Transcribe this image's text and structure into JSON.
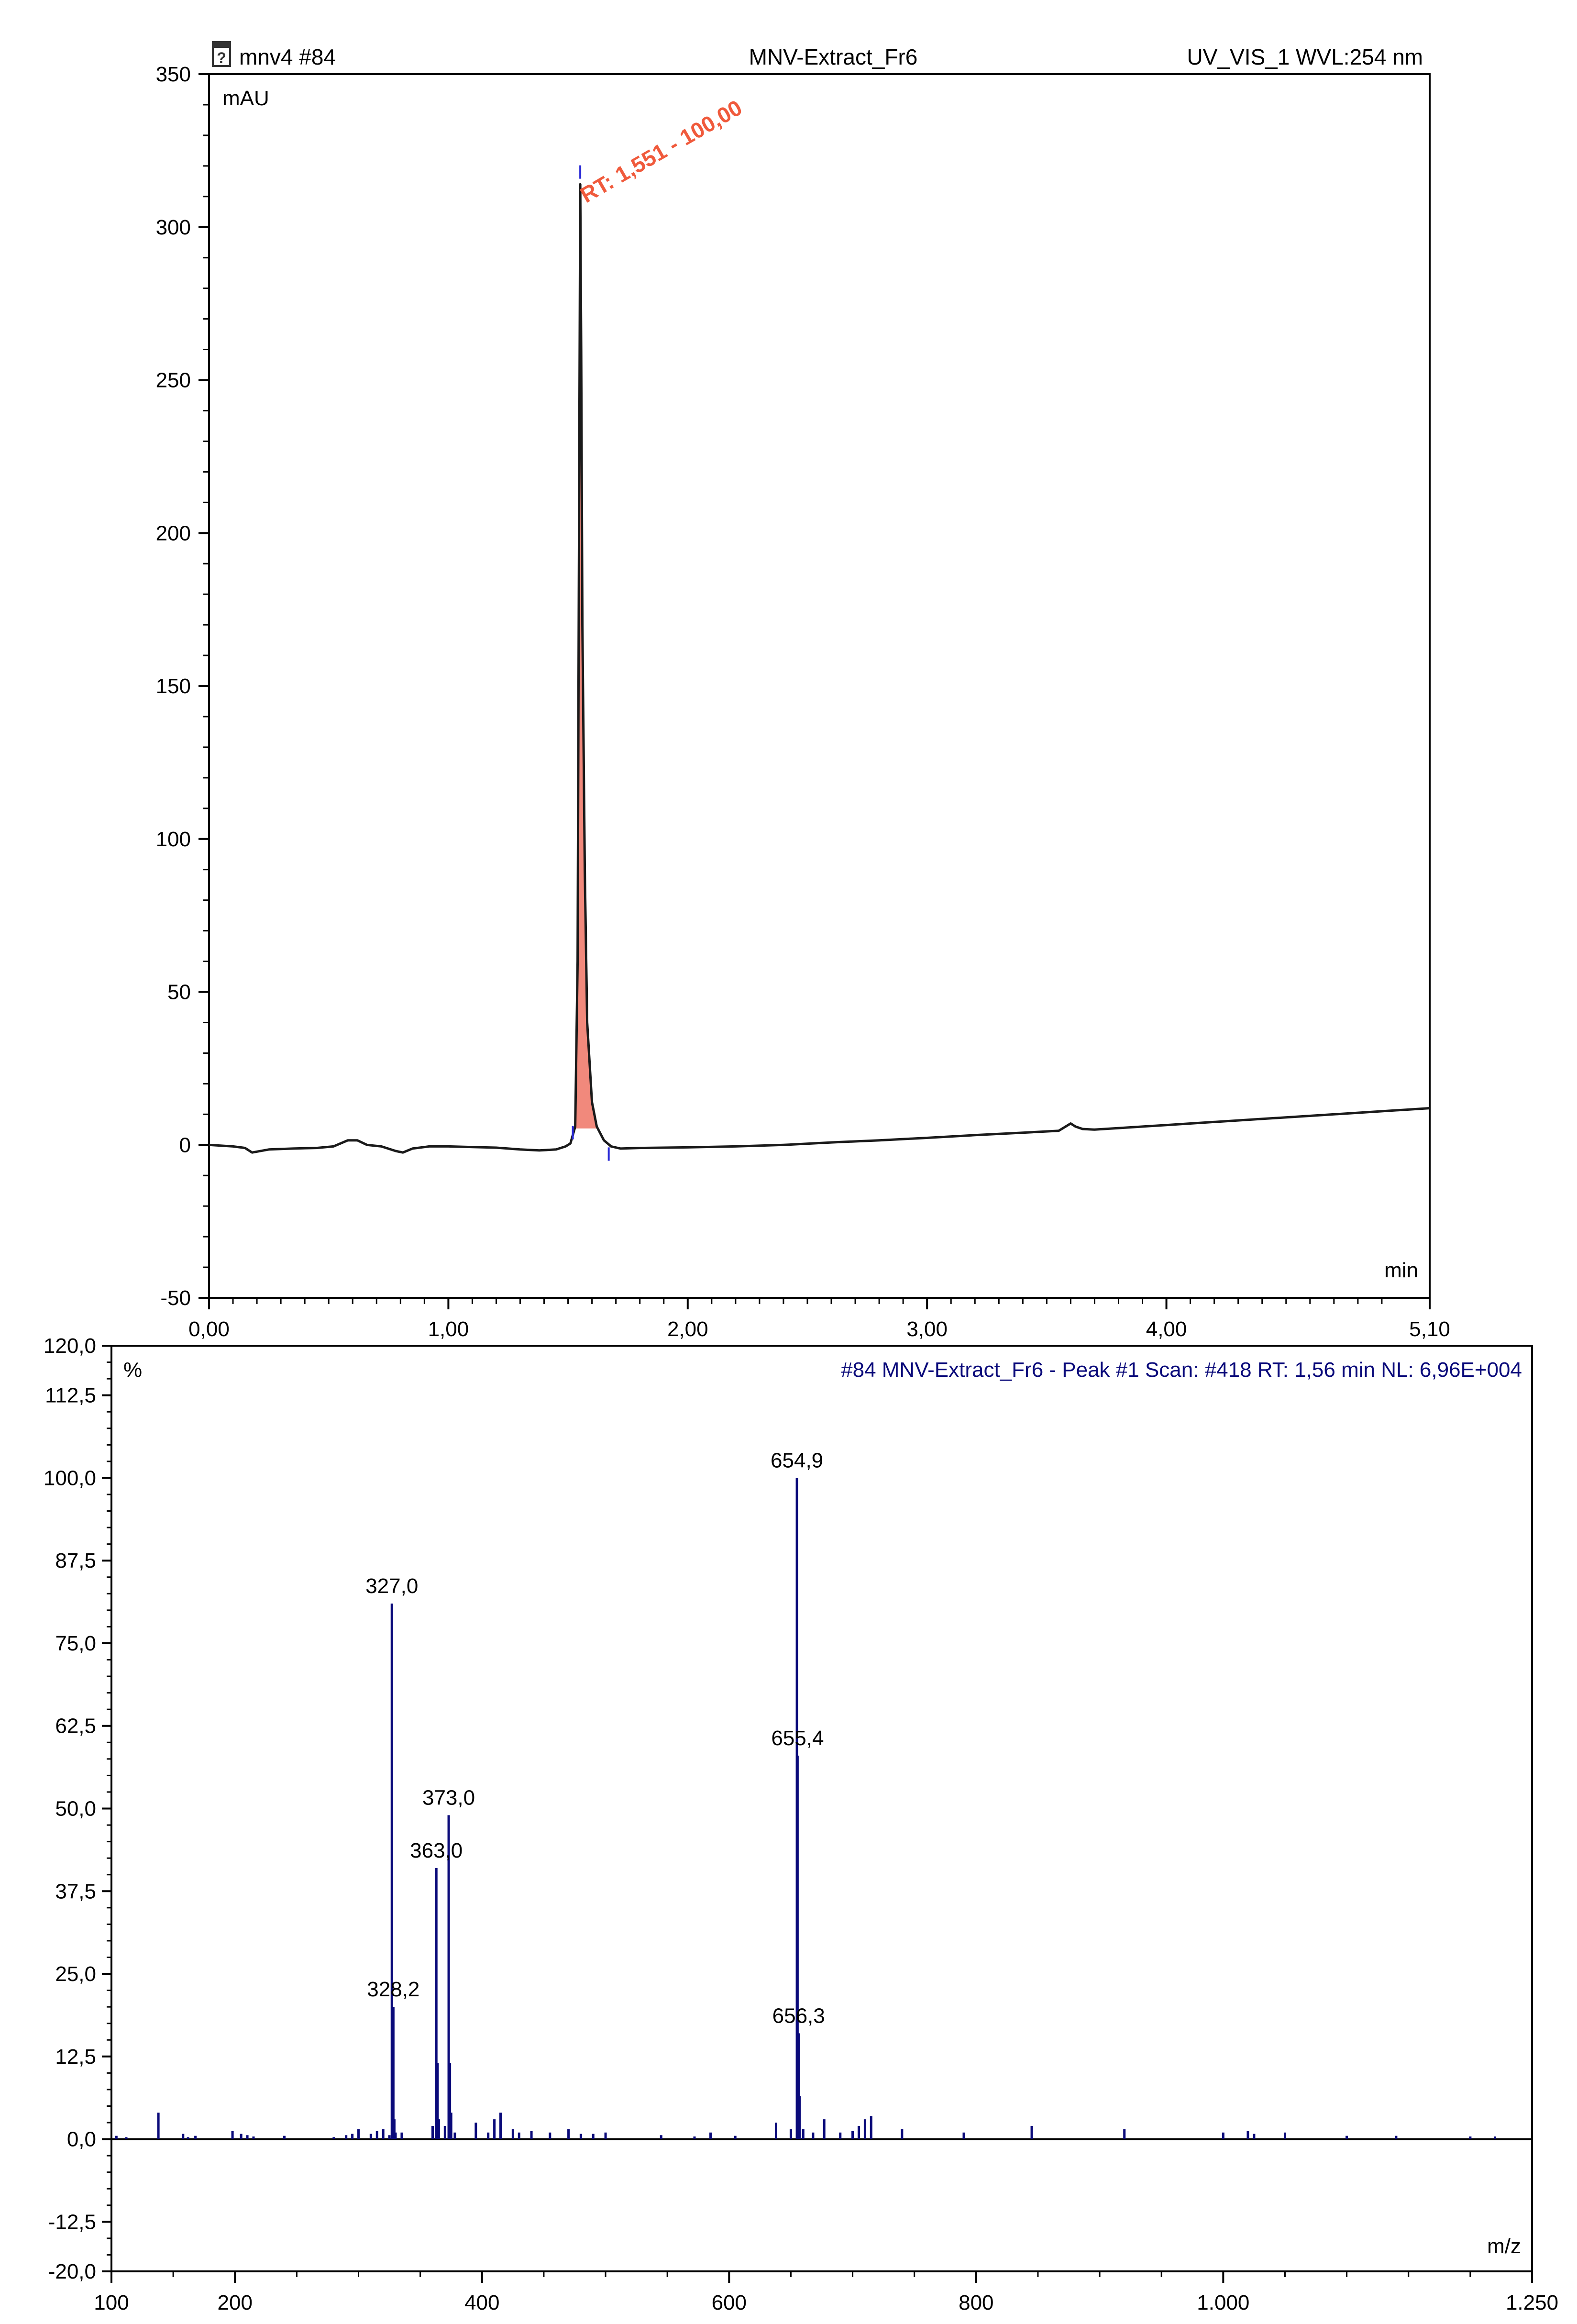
{
  "chart_data": [
    {
      "type": "line",
      "header": {
        "left": "mnv4 #84",
        "center": "MNV-Extract_Fr6",
        "right": "UV_VIS_1 WVL:254 nm"
      },
      "ylabel": "mAU",
      "xlabel": "min",
      "xlim": [
        0,
        5.1
      ],
      "ylim": [
        -50,
        350
      ],
      "xticks": [
        0,
        1,
        2,
        3,
        4,
        5.1
      ],
      "xtick_labels": [
        "0,00",
        "1,00",
        "2,00",
        "3,00",
        "4,00",
        "5,10"
      ],
      "yticks": [
        -50,
        0,
        50,
        100,
        150,
        200,
        250,
        300,
        350
      ],
      "ytick_labels": [
        "-50",
        "0",
        "50",
        "100",
        "150",
        "200",
        "250",
        "300",
        "350"
      ],
      "series": [
        {
          "x": [
            0.0,
            0.1,
            0.15,
            0.18,
            0.25,
            0.35,
            0.45,
            0.52,
            0.58,
            0.62,
            0.66,
            0.72,
            0.78,
            0.81,
            0.85,
            0.92,
            1.0,
            1.1,
            1.2,
            1.3,
            1.38,
            1.45,
            1.49,
            1.51,
            1.53,
            1.54,
            1.545,
            1.551,
            1.555,
            1.56,
            1.57,
            1.58,
            1.6,
            1.62,
            1.65,
            1.68,
            1.72,
            1.8,
            1.9,
            2.0,
            2.2,
            2.4,
            2.6,
            2.8,
            3.0,
            3.2,
            3.4,
            3.55,
            3.6,
            3.62,
            3.65,
            3.7,
            3.8,
            4.0,
            4.2,
            4.4,
            4.6,
            4.8,
            5.0,
            5.1
          ],
          "y": [
            0,
            -0.5,
            -1,
            -2.5,
            -1.5,
            -1.2,
            -1,
            -0.5,
            1.5,
            1.5,
            0,
            -0.5,
            -2,
            -2.5,
            -1.2,
            -0.5,
            -0.5,
            -0.7,
            -0.9,
            -1.5,
            -1.8,
            -1.5,
            -0.5,
            0.5,
            6,
            60,
            180,
            314,
            260,
            170,
            90,
            40,
            14,
            6,
            1.5,
            -0.5,
            -1.2,
            -1,
            -0.9,
            -0.8,
            -0.5,
            0,
            0.8,
            1.5,
            2.3,
            3.2,
            4.0,
            4.6,
            7.0,
            6.0,
            5.2,
            5.0,
            5.5,
            6.5,
            7.5,
            8.5,
            9.5,
            10.5,
            11.5,
            12
          ]
        }
      ],
      "peak_label": "RT: 1,551 - 100,00",
      "peak_rt": 1.551,
      "peak_height": 314,
      "peak_fill_range": [
        1.52,
        1.63
      ],
      "baseline_marks": [
        {
          "x": 1.551,
          "y": 318,
          "len": 5
        },
        {
          "x": 1.52,
          "y": 4,
          "len": 5
        },
        {
          "x": 1.67,
          "y": -3,
          "len": 5
        }
      ],
      "colors": {
        "trace": "#1a1a1a",
        "fill": "#f1897c",
        "label": "#f05a3c",
        "marker": "#2b2bd6"
      }
    },
    {
      "type": "bar",
      "header": {
        "right": "#84 MNV-Extract_Fr6 - Peak #1 Scan: #418  RT: 1,56 min NL: 6,96E+004"
      },
      "ylabel": "%",
      "xlabel": "m/z",
      "xlim": [
        100,
        1250
      ],
      "ylim": [
        -20,
        120
      ],
      "xticks": [
        100,
        200,
        400,
        600,
        800,
        1000,
        1250
      ],
      "xtick_labels": [
        "100",
        "200",
        "400",
        "600",
        "800",
        "1.000",
        "1.250"
      ],
      "yticks": [
        -20,
        -12.5,
        0,
        12.5,
        25,
        37.5,
        50,
        62.5,
        75,
        87.5,
        100,
        112.5,
        120
      ],
      "ytick_labels": [
        "-20,0",
        "-12,5",
        "0,0",
        "12,5",
        "25,0",
        "37,5",
        "50,0",
        "62,5",
        "75,0",
        "87,5",
        "100,0",
        "112,5",
        "120,0"
      ],
      "peaks": {
        "mz": [
          104,
          112,
          138,
          158,
          162,
          168,
          198,
          205,
          210,
          215,
          240,
          280,
          290,
          295,
          300,
          310,
          315,
          320,
          325,
          327,
          328.2,
          329,
          330,
          335,
          360,
          363,
          364,
          365,
          370,
          373,
          374,
          375,
          378,
          395,
          405,
          410,
          415,
          425,
          430,
          440,
          455,
          470,
          480,
          490,
          500,
          545,
          572,
          585,
          605,
          638,
          650,
          654.9,
          655.4,
          656.3,
          657,
          660,
          668,
          677,
          690,
          700,
          705,
          710,
          715,
          740,
          790,
          845,
          920,
          1000,
          1020,
          1025,
          1050,
          1100,
          1140,
          1200,
          1220
        ],
        "intensity": [
          0.5,
          0.3,
          4,
          0.8,
          0.3,
          0.5,
          1.2,
          0.8,
          0.6,
          0.4,
          0.5,
          0.3,
          0.6,
          0.8,
          1.5,
          0.8,
          1.2,
          1.5,
          0.6,
          81,
          20,
          3,
          1,
          1,
          2,
          41,
          11.5,
          3,
          2,
          49,
          11.5,
          4,
          1,
          2.5,
          1,
          3,
          4,
          1.5,
          1,
          1.2,
          1,
          1.5,
          0.8,
          0.8,
          1,
          0.6,
          0.4,
          1,
          0.5,
          2.5,
          1.5,
          100,
          58,
          16,
          6.5,
          1.5,
          1,
          3,
          1,
          1.2,
          2,
          3,
          3.5,
          1.5,
          1,
          2,
          1.5,
          1,
          1.2,
          0.8,
          1,
          0.5,
          0.5,
          0.4,
          0.4
        ]
      },
      "peak_labels": [
        {
          "mz": 327.0,
          "intensity": 81,
          "text": "327,0"
        },
        {
          "mz": 328.2,
          "intensity": 20,
          "text": "328,2"
        },
        {
          "mz": 363.0,
          "intensity": 41,
          "text": "363,0"
        },
        {
          "mz": 373.0,
          "intensity": 49,
          "text": "373,0"
        },
        {
          "mz": 654.9,
          "intensity": 100,
          "text": "654,9"
        },
        {
          "mz": 655.4,
          "intensity": 58,
          "text": "655,4"
        },
        {
          "mz": 656.3,
          "intensity": 16,
          "text": "656,3"
        }
      ],
      "colors": {
        "bar": "#0a0a7a",
        "header": "#0a0a7a"
      }
    }
  ]
}
